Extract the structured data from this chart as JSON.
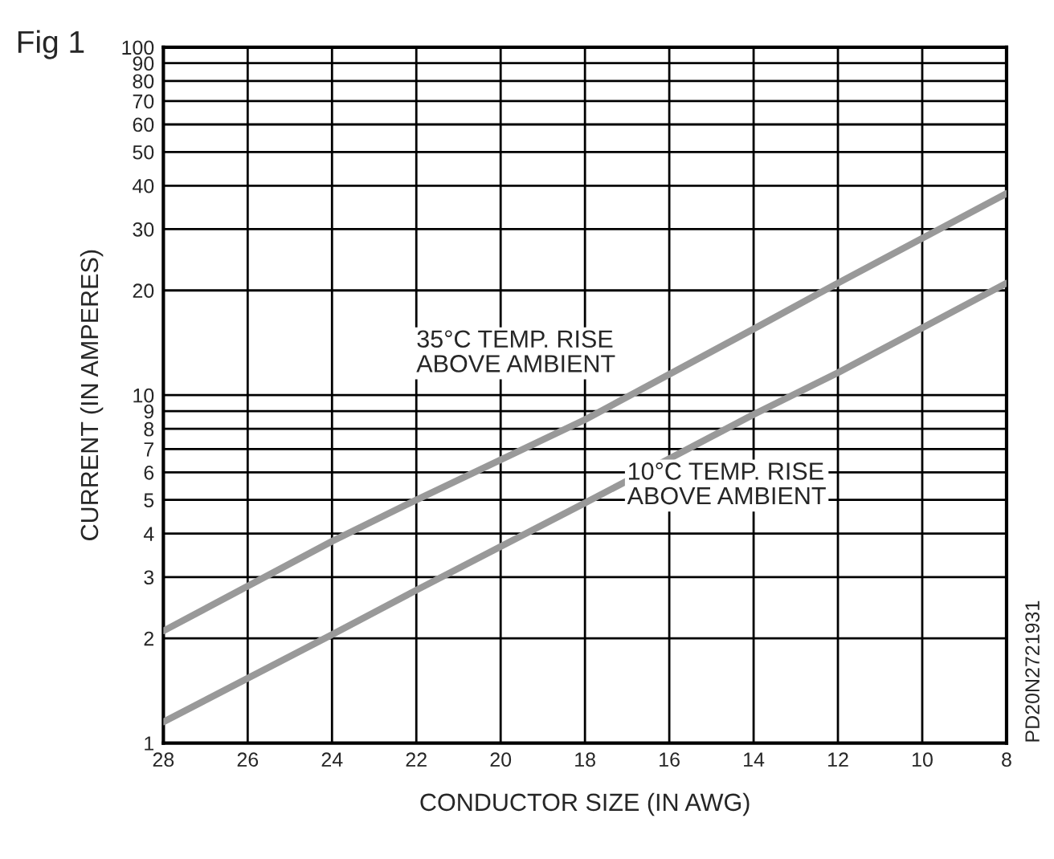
{
  "chart_data": {
    "type": "line",
    "title": "Fig 1",
    "xlabel": "CONDUCTOR SIZE (IN AWG)",
    "ylabel": "CURRENT (IN AMPERES)",
    "annotations": [
      "PD20N2721931"
    ],
    "log": "y",
    "grid": true,
    "legend": false,
    "marker": "none",
    "line_style": "solid",
    "xlim": [
      28,
      8
    ],
    "xticks": [
      28,
      26,
      24,
      22,
      20,
      18,
      16,
      14,
      12,
      10,
      8
    ],
    "ylim": [
      1,
      100
    ],
    "yticks": [
      1,
      2,
      3,
      4,
      5,
      6,
      7,
      8,
      9,
      10,
      20,
      30,
      40,
      50,
      60,
      70,
      80,
      90,
      100
    ],
    "series": [
      {
        "name": "35°C TEMP. RISE\nABOVE AMBIENT",
        "color": "#999999",
        "x": [
          28,
          24,
          22,
          18,
          14,
          12,
          8
        ],
        "values": [
          2.1,
          3.8,
          5,
          8.5,
          15.5,
          21,
          38
        ]
      },
      {
        "name": "10°C TEMP. RISE\nABOVE AMBIENT",
        "color": "#999999",
        "x": [
          28,
          24,
          22,
          18,
          14,
          12,
          8
        ],
        "values": [
          1.15,
          2.05,
          2.75,
          4.9,
          8.8,
          11.6,
          21
        ]
      }
    ]
  }
}
